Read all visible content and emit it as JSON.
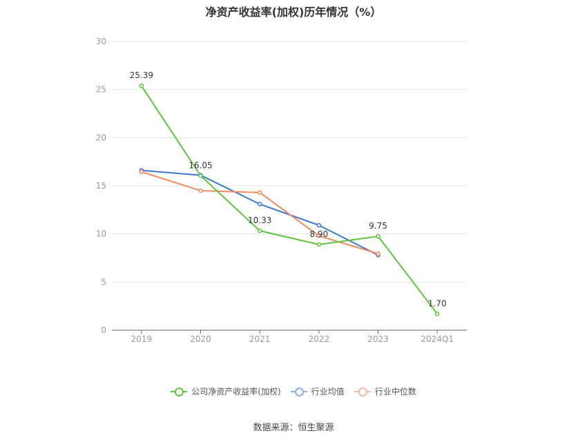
{
  "title": "净资产收益率(加权)历年情况（%）",
  "source": "数据来源：恒生聚源",
  "chart_data": {
    "type": "line",
    "categories": [
      "2019",
      "2020",
      "2021",
      "2022",
      "2023",
      "2024Q1"
    ],
    "ylim": [
      0,
      30
    ],
    "yticks": [
      0,
      5,
      10,
      15,
      20,
      25,
      30
    ],
    "grid": true,
    "legend_position": "bottom",
    "series": [
      {
        "name": "公司净资产收益率(加权)",
        "color": "#5cc63a",
        "values": [
          25.39,
          16.05,
          10.33,
          8.9,
          9.75,
          1.7
        ],
        "labels": [
          "25.39",
          "16.05",
          "10.33",
          "8.90",
          "9.75",
          "1.70"
        ]
      },
      {
        "name": "行业均值",
        "color": "#3c78d8",
        "values": [
          16.6,
          16.1,
          13.1,
          10.9,
          7.8,
          null
        ]
      },
      {
        "name": "行业中位数",
        "color": "#f08a5d",
        "values": [
          16.45,
          14.5,
          14.3,
          9.8,
          7.95,
          null
        ]
      }
    ]
  }
}
